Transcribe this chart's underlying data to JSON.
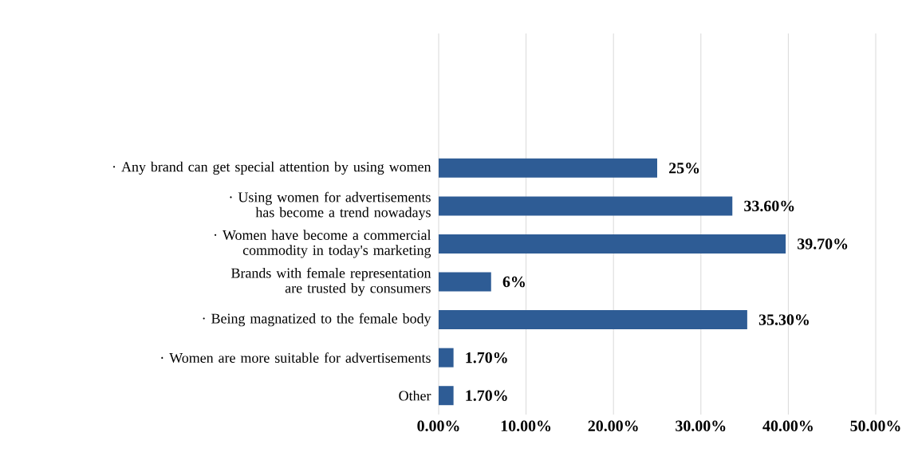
{
  "chart_data": {
    "type": "bar",
    "orientation": "horizontal",
    "categories": [
      "· Any brand can get special attention by using women",
      "· Using women for advertisements has become a trend nowadays",
      "· Women have become a commercial commodity in today's marketing",
      "Brands with female representation are trusted by consumers",
      "· Being magnatized to the female body",
      "· Women are more suitable for advertisements",
      "Other"
    ],
    "values": [
      25,
      33.6,
      39.7,
      6,
      35.3,
      1.7,
      1.7
    ],
    "value_labels": [
      "25%",
      "33.60%",
      "39.70%",
      "6%",
      "35.30%",
      "1.70%",
      "1.70%"
    ],
    "color": "#2e5c95",
    "xlim": [
      0,
      50
    ],
    "xticks": [
      {
        "value": 0,
        "label": "0.00%"
      },
      {
        "value": 10,
        "label": "10.00%"
      },
      {
        "value": 20,
        "label": "20.00%"
      },
      {
        "value": 30,
        "label": "30.00%"
      },
      {
        "value": 40,
        "label": "40.00%"
      },
      {
        "value": 50,
        "label": "50.00%"
      }
    ],
    "grid": "x"
  }
}
